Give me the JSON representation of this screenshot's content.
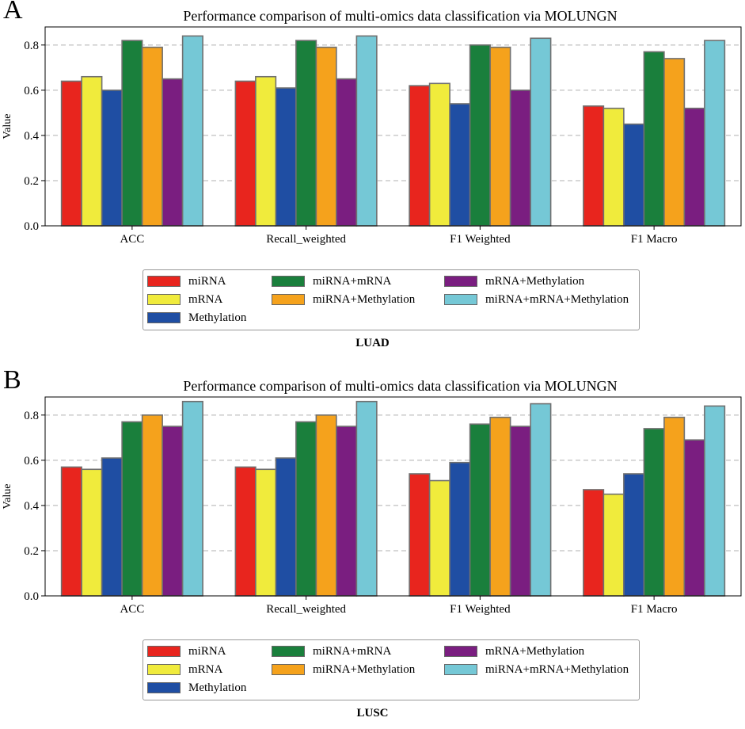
{
  "colors": {
    "miRNA": "#e8251e",
    "mRNA": "#f0eb3c",
    "Methylation": "#1f4ea3",
    "miRNA+mRNA": "#1a7f3c",
    "miRNA+Methylation": "#f5a21c",
    "mRNA+Methylation": "#7a1e80",
    "miRNA+mRNA+Methylation": "#75c8d6"
  },
  "panels": [
    {
      "letter": "A",
      "caption": "LUAD",
      "legend": [
        "miRNA",
        "mRNA",
        "Methylation",
        "miRNA+mRNA",
        "miRNA+Methylation",
        "mRNA+Methylation",
        "miRNA+mRNA+Methylation"
      ]
    },
    {
      "letter": "B",
      "caption": "LUSC",
      "legend": [
        "miRNA",
        "mRNA",
        "Methylation",
        "miRNA+mRNA",
        "miRNA+Methylation",
        "mRNA+Methylation",
        "miRNA+mRNA+Methylation"
      ]
    }
  ],
  "chart_data": [
    {
      "type": "bar",
      "title": "Performance comparison of multi-omics data classification via MOLUNGN",
      "xlabel": "",
      "ylabel": "Value",
      "ylim": [
        0,
        0.88
      ],
      "yticks": [
        "0.0",
        "0.2",
        "0.4",
        "0.6",
        "0.8"
      ],
      "grid": "horizontal dashed",
      "categories": [
        "ACC",
        "Recall_weighted",
        "F1 Weighted",
        "F1 Macro"
      ],
      "series": [
        {
          "name": "miRNA",
          "values": [
            0.64,
            0.64,
            0.62,
            0.53
          ]
        },
        {
          "name": "mRNA",
          "values": [
            0.66,
            0.66,
            0.63,
            0.52
          ]
        },
        {
          "name": "Methylation",
          "values": [
            0.6,
            0.61,
            0.54,
            0.45
          ]
        },
        {
          "name": "miRNA+mRNA",
          "values": [
            0.82,
            0.82,
            0.8,
            0.77
          ]
        },
        {
          "name": "miRNA+Methylation",
          "values": [
            0.79,
            0.79,
            0.79,
            0.74
          ]
        },
        {
          "name": "mRNA+Methylation",
          "values": [
            0.65,
            0.65,
            0.6,
            0.52
          ]
        },
        {
          "name": "miRNA+mRNA+Methylation",
          "values": [
            0.84,
            0.84,
            0.83,
            0.82
          ]
        }
      ]
    },
    {
      "type": "bar",
      "title": "Performance comparison of multi-omics data classification via MOLUNGN",
      "xlabel": "",
      "ylabel": "Value",
      "ylim": [
        0,
        0.88
      ],
      "yticks": [
        "0.0",
        "0.2",
        "0.4",
        "0.6",
        "0.8"
      ],
      "grid": "horizontal dashed",
      "categories": [
        "ACC",
        "Recall_weighted",
        "F1 Weighted",
        "F1 Macro"
      ],
      "series": [
        {
          "name": "miRNA",
          "values": [
            0.57,
            0.57,
            0.54,
            0.47
          ]
        },
        {
          "name": "mRNA",
          "values": [
            0.56,
            0.56,
            0.51,
            0.45
          ]
        },
        {
          "name": "Methylation",
          "values": [
            0.61,
            0.61,
            0.59,
            0.54
          ]
        },
        {
          "name": "miRNA+mRNA",
          "values": [
            0.77,
            0.77,
            0.76,
            0.74
          ]
        },
        {
          "name": "miRNA+Methylation",
          "values": [
            0.8,
            0.8,
            0.79,
            0.79
          ]
        },
        {
          "name": "mRNA+Methylation",
          "values": [
            0.75,
            0.75,
            0.75,
            0.69
          ]
        },
        {
          "name": "miRNA+mRNA+Methylation",
          "values": [
            0.86,
            0.86,
            0.85,
            0.84
          ]
        }
      ]
    }
  ]
}
